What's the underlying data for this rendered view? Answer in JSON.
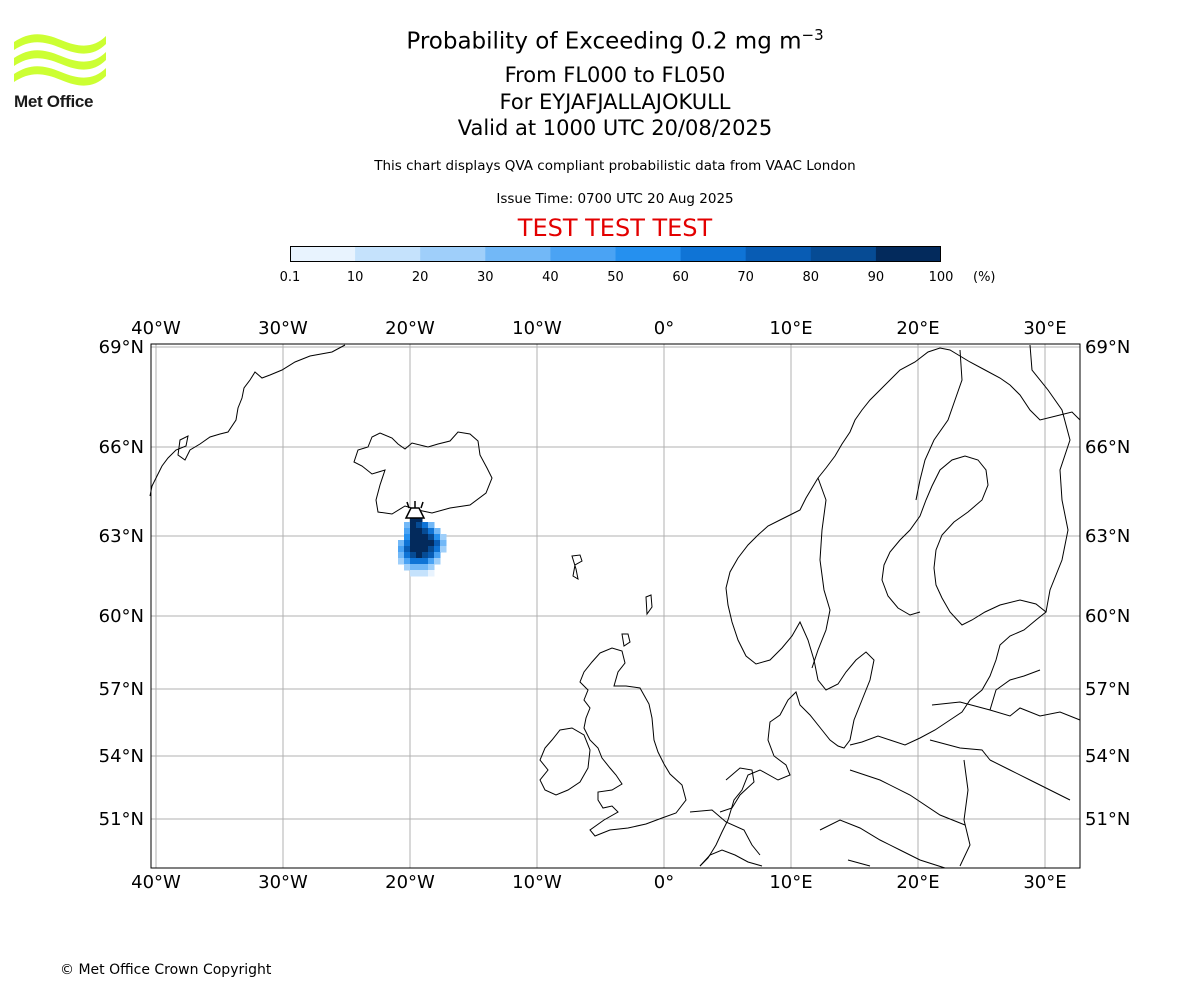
{
  "logo": {
    "text": "Met Office",
    "color": "#ccff33"
  },
  "header": {
    "title_main": "Probability of Exceeding 0.2 mg m",
    "title_sup": "−3",
    "level_range": "From FL000 to FL050",
    "volcano": "For EYJAFJALLAJOKULL",
    "valid_time": "Valid at 1000 UTC 20/08/2025",
    "description": "This chart displays QVA compliant probabilistic data from VAAC London",
    "issue_time": "Issue Time: 0700 UTC 20 Aug 2025",
    "test_banner": "TEST TEST TEST"
  },
  "colorbar": {
    "ticks": [
      "0.1",
      "10",
      "20",
      "30",
      "40",
      "50",
      "60",
      "70",
      "80",
      "90",
      "100"
    ],
    "unit": "(%)",
    "colors": [
      "#e8f3fe",
      "#c5e2fc",
      "#9fcffa",
      "#72b8f7",
      "#4aa3f4",
      "#2590ef",
      "#0f74d6",
      "#085cb4",
      "#064b94",
      "#032a5c"
    ]
  },
  "map": {
    "lon_labels": [
      "40°W",
      "30°W",
      "20°W",
      "10°W",
      "0°",
      "10°E",
      "20°E",
      "30°E"
    ],
    "lat_labels": [
      "69°N",
      "66°N",
      "63°N",
      "60°N",
      "57°N",
      "54°N",
      "51°N"
    ],
    "grid_color": "#b0b0b0",
    "volcano_icon": "volcano-symbol"
  },
  "footer": {
    "copyright": "© Met Office Crown Copyright"
  }
}
